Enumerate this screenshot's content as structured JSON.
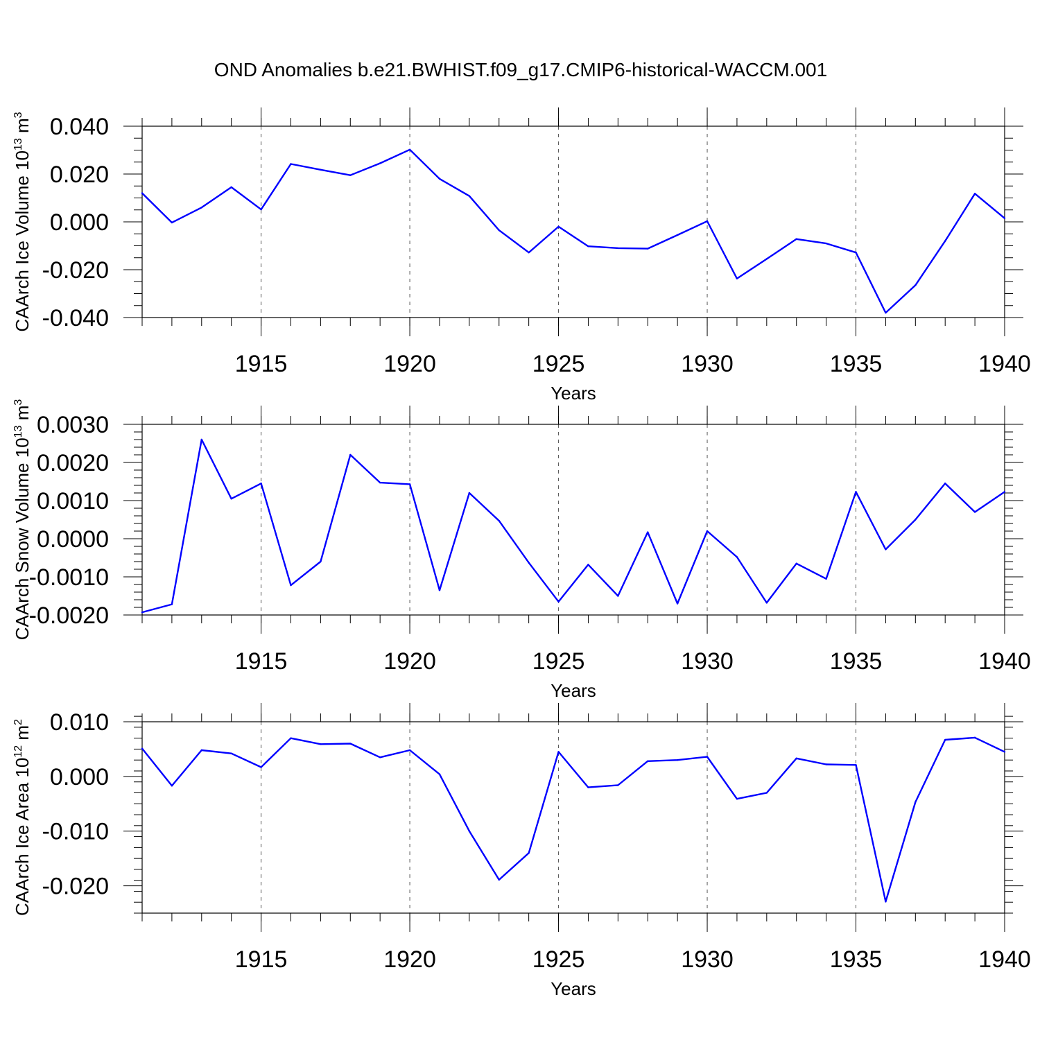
{
  "title": "OND Anomalies b.e21.BWHIST.f09_g17.CMIP6-historical-WACCM.001",
  "colors": {
    "line": "#0000ff",
    "grid": "#555555",
    "axis": "#000000"
  },
  "chart_data": [
    {
      "type": "line",
      "ylabel_main": "CAArch Ice Volume 10",
      "ylabel_exp": "13",
      "ylabel_unit": " m",
      "ylabel_unit_exp": "3",
      "xlabel": "Years",
      "xlim": [
        1911,
        1940
      ],
      "ylim": [
        -0.04,
        0.04
      ],
      "x_ticks": [
        1915,
        1920,
        1925,
        1930,
        1935,
        1940
      ],
      "x_tick_labels": [
        "1915",
        "1920",
        "1925",
        "1930",
        "1935",
        "1940"
      ],
      "y_ticks": [
        -0.04,
        -0.02,
        0.0,
        0.02,
        0.04
      ],
      "y_tick_labels": [
        "-0.040",
        "-0.020",
        "0.000",
        "0.020",
        "0.040"
      ],
      "y_minor_step": 0.005,
      "grid": "vertical dashed at major x ticks",
      "x": [
        1911,
        1912,
        1913,
        1914,
        1915,
        1916,
        1917,
        1918,
        1919,
        1920,
        1921,
        1922,
        1923,
        1924,
        1925,
        1926,
        1927,
        1928,
        1929,
        1930,
        1931,
        1932,
        1933,
        1934,
        1935,
        1936,
        1937,
        1938,
        1939,
        1940
      ],
      "values": [
        0.012,
        -0.0003,
        0.006,
        0.0145,
        0.0052,
        0.0242,
        0.0218,
        0.0195,
        0.0245,
        0.0302,
        0.018,
        0.0108,
        -0.0035,
        -0.0128,
        -0.002,
        -0.0102,
        -0.011,
        -0.0112,
        -0.0055,
        0.0003,
        -0.0237,
        -0.0155,
        -0.0072,
        -0.009,
        -0.0128,
        -0.038,
        -0.0265,
        -0.008,
        0.0118,
        0.0015
      ]
    },
    {
      "type": "line",
      "ylabel_main": "CAArch Snow Volume 10",
      "ylabel_exp": "13",
      "ylabel_unit": " m",
      "ylabel_unit_exp": "3",
      "xlabel": "Years",
      "xlim": [
        1911,
        1940
      ],
      "ylim": [
        -0.002,
        0.003
      ],
      "x_ticks": [
        1915,
        1920,
        1925,
        1930,
        1935,
        1940
      ],
      "x_tick_labels": [
        "1915",
        "1920",
        "1925",
        "1930",
        "1935",
        "1940"
      ],
      "y_ticks": [
        -0.002,
        -0.001,
        0.0,
        0.001,
        0.002,
        0.003
      ],
      "y_tick_labels": [
        "-0.0020",
        "-0.0010",
        "0.0000",
        "0.0010",
        "0.0020",
        "0.0030"
      ],
      "y_minor_step": 0.0002,
      "grid": "vertical dashed at major x ticks",
      "x": [
        1911,
        1912,
        1913,
        1914,
        1915,
        1916,
        1917,
        1918,
        1919,
        1920,
        1921,
        1922,
        1923,
        1924,
        1925,
        1926,
        1927,
        1928,
        1929,
        1930,
        1931,
        1932,
        1933,
        1934,
        1935,
        1936,
        1937,
        1938,
        1939,
        1940
      ],
      "values": [
        -0.00193,
        -0.00172,
        0.0026,
        0.00105,
        0.00145,
        -0.00122,
        -0.0006,
        0.0022,
        0.00147,
        0.00143,
        -0.00135,
        0.0012,
        0.00047,
        -0.00063,
        -0.00165,
        -0.00068,
        -0.0015,
        0.00017,
        -0.0017,
        0.0002,
        -0.00048,
        -0.00168,
        -0.00065,
        -0.00105,
        0.00123,
        -0.00028,
        0.0005,
        0.00145,
        0.0007,
        0.00123
      ]
    },
    {
      "type": "line",
      "ylabel_main": "CAArch Ice Area 10",
      "ylabel_exp": "12",
      "ylabel_unit": " m",
      "ylabel_unit_exp": "2",
      "xlabel": "Years",
      "xlim": [
        1911,
        1940
      ],
      "ylim": [
        -0.025,
        0.01
      ],
      "x_ticks": [
        1915,
        1920,
        1925,
        1930,
        1935,
        1940
      ],
      "x_tick_labels": [
        "1915",
        "1920",
        "1925",
        "1930",
        "1935",
        "1940"
      ],
      "y_ticks": [
        -0.02,
        -0.01,
        0.0,
        0.01
      ],
      "y_tick_labels": [
        "-0.020",
        "-0.010",
        "0.000",
        "0.010"
      ],
      "y_minor_step": 0.002,
      "grid": "vertical dashed at major x ticks",
      "x": [
        1911,
        1912,
        1913,
        1914,
        1915,
        1916,
        1917,
        1918,
        1919,
        1920,
        1921,
        1922,
        1923,
        1924,
        1925,
        1926,
        1927,
        1928,
        1929,
        1930,
        1931,
        1932,
        1933,
        1934,
        1935,
        1936,
        1937,
        1938,
        1939,
        1940
      ],
      "values": [
        0.0051,
        -0.0017,
        0.0048,
        0.0042,
        0.0017,
        0.007,
        0.0059,
        0.006,
        0.0035,
        0.0048,
        0.0004,
        -0.01,
        -0.0189,
        -0.014,
        0.0045,
        -0.002,
        -0.0016,
        0.0028,
        0.003,
        0.0036,
        -0.0041,
        -0.003,
        0.0033,
        0.0022,
        0.0021,
        -0.0229,
        -0.0047,
        0.0067,
        0.0071,
        0.0045
      ]
    }
  ]
}
